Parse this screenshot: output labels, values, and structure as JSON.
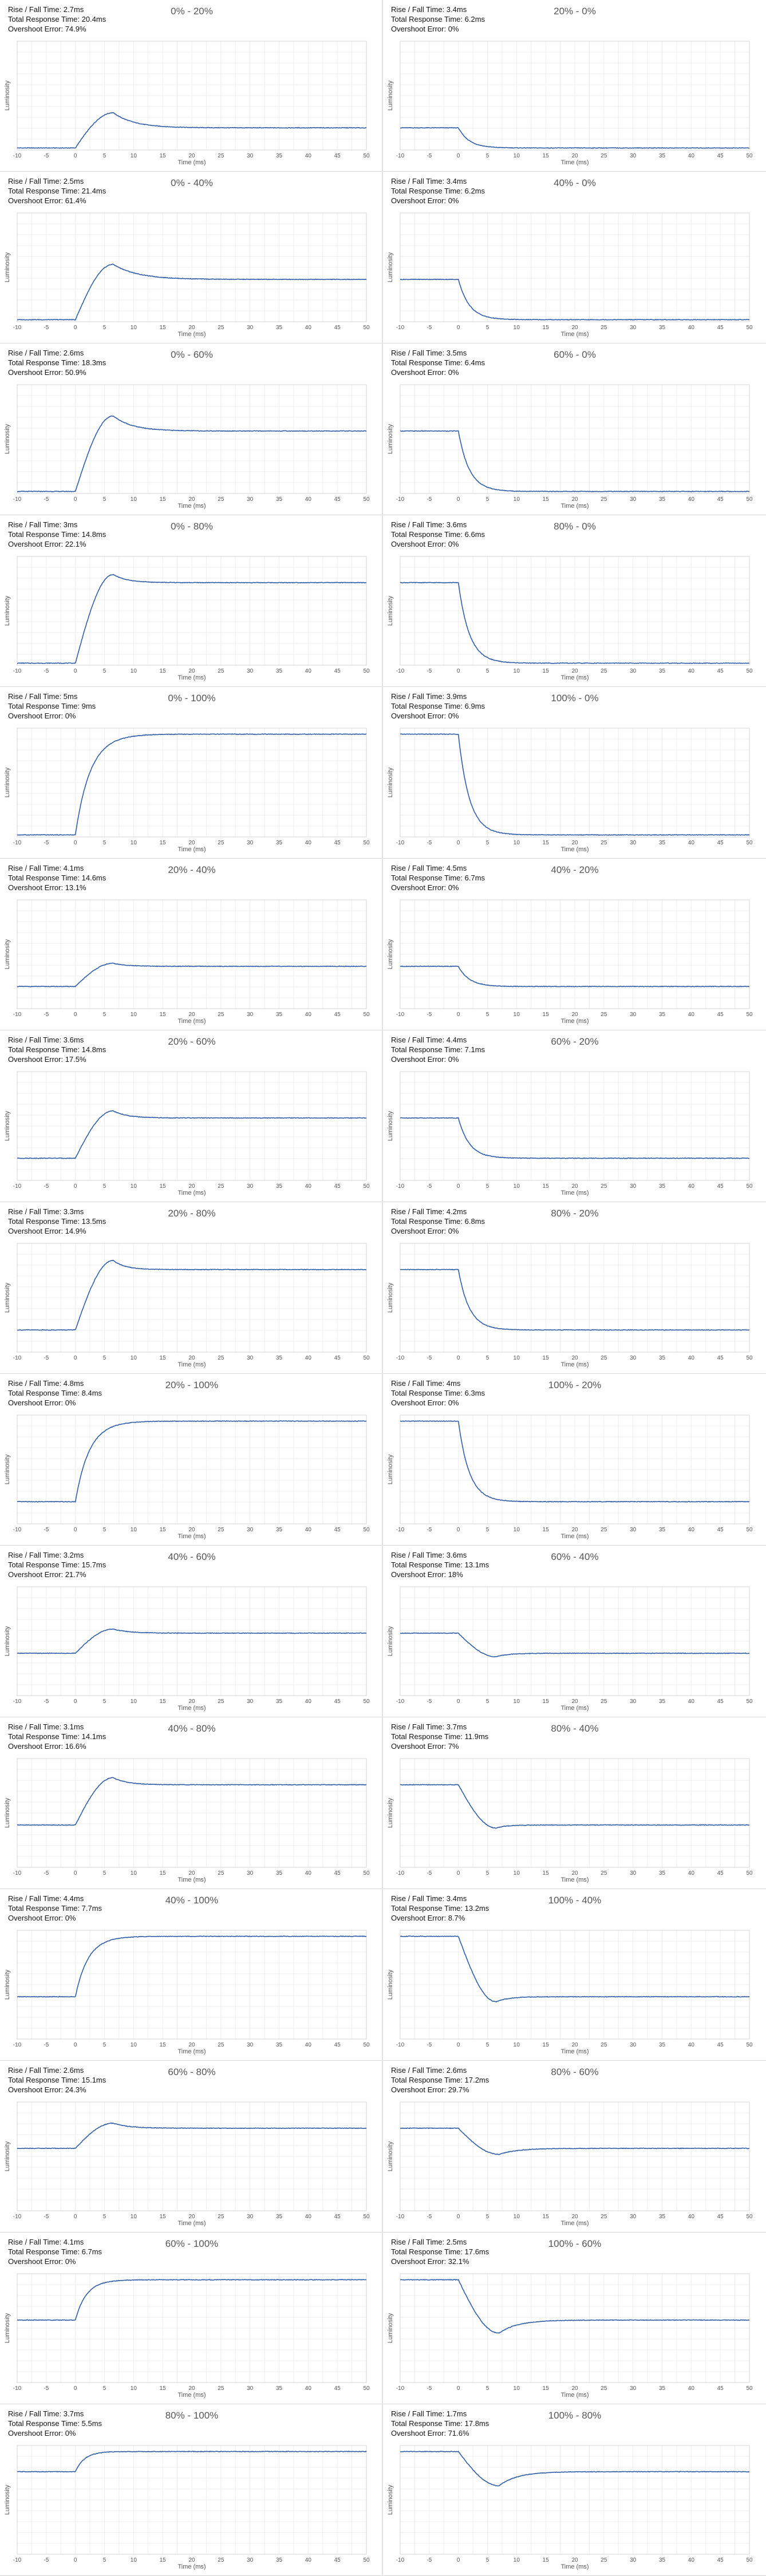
{
  "stat_labels": {
    "rise_fall": "Rise / Fall Time:",
    "total": "Total Response Time:",
    "overshoot": "Overshoot Error:"
  },
  "chart_data": [
    {
      "type": "line",
      "title": "0% - 20%",
      "xlabel": "Time (ms)",
      "ylabel": "Luminosity",
      "xlim": [
        -10,
        50
      ],
      "x_ticks": [
        -10,
        -5,
        0,
        5,
        10,
        15,
        20,
        25,
        30,
        35,
        40,
        45,
        50
      ],
      "rise_fall": "2.7ms",
      "total": "20.4ms",
      "overshoot": "74.9%",
      "start": 0,
      "target": 0.2,
      "peak": 0.35,
      "peak_time": 6.5,
      "transition_start": 0,
      "settle_time": 18
    },
    {
      "type": "line",
      "title": "20% - 0%",
      "xlabel": "Time (ms)",
      "ylabel": "Luminosity",
      "xlim": [
        -10,
        50
      ],
      "x_ticks": [
        -10,
        -5,
        0,
        5,
        10,
        15,
        20,
        25,
        30,
        35,
        40,
        45,
        50
      ],
      "rise_fall": "3.4ms",
      "total": "6.2ms",
      "overshoot": "0%",
      "start": 0.2,
      "target": 0,
      "peak": 0,
      "peak_time": 6,
      "transition_start": 0,
      "settle_time": 7
    },
    {
      "type": "line",
      "title": "0% - 40%",
      "xlabel": "Time (ms)",
      "ylabel": "Luminosity",
      "xlim": [
        -10,
        50
      ],
      "x_ticks": [
        -10,
        -5,
        0,
        5,
        10,
        15,
        20,
        25,
        30,
        35,
        40,
        45,
        50
      ],
      "rise_fall": "2.5ms",
      "total": "21.4ms",
      "overshoot": "61.4%",
      "start": 0,
      "target": 0.4,
      "peak": 0.55,
      "peak_time": 6.5,
      "transition_start": 0,
      "settle_time": 20
    },
    {
      "type": "line",
      "title": "40% - 0%",
      "xlabel": "Time (ms)",
      "ylabel": "Luminosity",
      "xlim": [
        -10,
        50
      ],
      "x_ticks": [
        -10,
        -5,
        0,
        5,
        10,
        15,
        20,
        25,
        30,
        35,
        40,
        45,
        50
      ],
      "rise_fall": "3.4ms",
      "total": "6.2ms",
      "overshoot": "0%",
      "start": 0.4,
      "target": 0,
      "peak": 0,
      "peak_time": 6,
      "transition_start": 0,
      "settle_time": 7
    },
    {
      "type": "line",
      "title": "0% - 60%",
      "xlabel": "Time (ms)",
      "ylabel": "Luminosity",
      "xlim": [
        -10,
        50
      ],
      "x_ticks": [
        -10,
        -5,
        0,
        5,
        10,
        15,
        20,
        25,
        30,
        35,
        40,
        45,
        50
      ],
      "rise_fall": "2.6ms",
      "total": "18.3ms",
      "overshoot": "50.9%",
      "start": 0,
      "target": 0.6,
      "peak": 0.75,
      "peak_time": 6.5,
      "transition_start": 0,
      "settle_time": 17
    },
    {
      "type": "line",
      "title": "60% - 0%",
      "xlabel": "Time (ms)",
      "ylabel": "Luminosity",
      "xlim": [
        -10,
        50
      ],
      "x_ticks": [
        -10,
        -5,
        0,
        5,
        10,
        15,
        20,
        25,
        30,
        35,
        40,
        45,
        50
      ],
      "rise_fall": "3.5ms",
      "total": "6.4ms",
      "overshoot": "0%",
      "start": 0.6,
      "target": 0,
      "peak": 0,
      "peak_time": 6,
      "transition_start": 0,
      "settle_time": 7
    },
    {
      "type": "line",
      "title": "0% - 80%",
      "xlabel": "Time (ms)",
      "ylabel": "Luminosity",
      "xlim": [
        -10,
        50
      ],
      "x_ticks": [
        -10,
        -5,
        0,
        5,
        10,
        15,
        20,
        25,
        30,
        35,
        40,
        45,
        50
      ],
      "rise_fall": "3ms",
      "total": "14.8ms",
      "overshoot": "22.1%",
      "start": 0,
      "target": 0.8,
      "peak": 0.88,
      "peak_time": 6.5,
      "transition_start": 0,
      "settle_time": 14
    },
    {
      "type": "line",
      "title": "80% - 0%",
      "xlabel": "Time (ms)",
      "ylabel": "Luminosity",
      "xlim": [
        -10,
        50
      ],
      "x_ticks": [
        -10,
        -5,
        0,
        5,
        10,
        15,
        20,
        25,
        30,
        35,
        40,
        45,
        50
      ],
      "rise_fall": "3.6ms",
      "total": "6.6ms",
      "overshoot": "0%",
      "start": 0.8,
      "target": 0,
      "peak": 0,
      "peak_time": 6,
      "transition_start": 0,
      "settle_time": 7
    },
    {
      "type": "line",
      "title": "0% - 100%",
      "xlabel": "Time (ms)",
      "ylabel": "Luminosity",
      "xlim": [
        -10,
        50
      ],
      "x_ticks": [
        -10,
        -5,
        0,
        5,
        10,
        15,
        20,
        25,
        30,
        35,
        40,
        45,
        50
      ],
      "rise_fall": "5ms",
      "total": "9ms",
      "overshoot": "0%",
      "start": 0,
      "target": 1,
      "peak": 1,
      "peak_time": 9,
      "transition_start": 0,
      "settle_time": 9
    },
    {
      "type": "line",
      "title": "100% - 0%",
      "xlabel": "Time (ms)",
      "ylabel": "Luminosity",
      "xlim": [
        -10,
        50
      ],
      "x_ticks": [
        -10,
        -5,
        0,
        5,
        10,
        15,
        20,
        25,
        30,
        35,
        40,
        45,
        50
      ],
      "rise_fall": "3.9ms",
      "total": "6.9ms",
      "overshoot": "0%",
      "start": 1,
      "target": 0,
      "peak": 0,
      "peak_time": 6,
      "transition_start": 0,
      "settle_time": 7
    },
    {
      "type": "line",
      "title": "20% - 40%",
      "xlabel": "Time (ms)",
      "ylabel": "Luminosity",
      "xlim": [
        -10,
        50
      ],
      "x_ticks": [
        -10,
        -5,
        0,
        5,
        10,
        15,
        20,
        25,
        30,
        35,
        40,
        45,
        50
      ],
      "rise_fall": "4.1ms",
      "total": "14.6ms",
      "overshoot": "13.1%",
      "start": 0.2,
      "target": 0.4,
      "peak": 0.43,
      "peak_time": 6.5,
      "transition_start": 0,
      "settle_time": 14
    },
    {
      "type": "line",
      "title": "40% - 20%",
      "xlabel": "Time (ms)",
      "ylabel": "Luminosity",
      "xlim": [
        -10,
        50
      ],
      "x_ticks": [
        -10,
        -5,
        0,
        5,
        10,
        15,
        20,
        25,
        30,
        35,
        40,
        45,
        50
      ],
      "rise_fall": "4.5ms",
      "total": "6.7ms",
      "overshoot": "0%",
      "start": 0.4,
      "target": 0.2,
      "peak": 0.2,
      "peak_time": 6,
      "transition_start": 0,
      "settle_time": 7
    },
    {
      "type": "line",
      "title": "20% - 60%",
      "xlabel": "Time (ms)",
      "ylabel": "Luminosity",
      "xlim": [
        -10,
        50
      ],
      "x_ticks": [
        -10,
        -5,
        0,
        5,
        10,
        15,
        20,
        25,
        30,
        35,
        40,
        45,
        50
      ],
      "rise_fall": "3.6ms",
      "total": "14.8ms",
      "overshoot": "17.5%",
      "start": 0.2,
      "target": 0.6,
      "peak": 0.67,
      "peak_time": 6.5,
      "transition_start": 0,
      "settle_time": 14
    },
    {
      "type": "line",
      "title": "60% - 20%",
      "xlabel": "Time (ms)",
      "ylabel": "Luminosity",
      "xlim": [
        -10,
        50
      ],
      "x_ticks": [
        -10,
        -5,
        0,
        5,
        10,
        15,
        20,
        25,
        30,
        35,
        40,
        45,
        50
      ],
      "rise_fall": "4.4ms",
      "total": "7.1ms",
      "overshoot": "0%",
      "start": 0.6,
      "target": 0.2,
      "peak": 0.2,
      "peak_time": 6,
      "transition_start": 0,
      "settle_time": 7
    },
    {
      "type": "line",
      "title": "20% - 80%",
      "xlabel": "Time (ms)",
      "ylabel": "Luminosity",
      "xlim": [
        -10,
        50
      ],
      "x_ticks": [
        -10,
        -5,
        0,
        5,
        10,
        15,
        20,
        25,
        30,
        35,
        40,
        45,
        50
      ],
      "rise_fall": "3.3ms",
      "total": "13.5ms",
      "overshoot": "14.9%",
      "start": 0.2,
      "target": 0.8,
      "peak": 0.89,
      "peak_time": 6.5,
      "transition_start": 0,
      "settle_time": 13
    },
    {
      "type": "line",
      "title": "80% - 20%",
      "xlabel": "Time (ms)",
      "ylabel": "Luminosity",
      "xlim": [
        -10,
        50
      ],
      "x_ticks": [
        -10,
        -5,
        0,
        5,
        10,
        15,
        20,
        25,
        30,
        35,
        40,
        45,
        50
      ],
      "rise_fall": "4.2ms",
      "total": "6.8ms",
      "overshoot": "0%",
      "start": 0.8,
      "target": 0.2,
      "peak": 0.2,
      "peak_time": 6,
      "transition_start": 0,
      "settle_time": 7
    },
    {
      "type": "line",
      "title": "20% - 100%",
      "xlabel": "Time (ms)",
      "ylabel": "Luminosity",
      "xlim": [
        -10,
        50
      ],
      "x_ticks": [
        -10,
        -5,
        0,
        5,
        10,
        15,
        20,
        25,
        30,
        35,
        40,
        45,
        50
      ],
      "rise_fall": "4.8ms",
      "total": "8.4ms",
      "overshoot": "0%",
      "start": 0.2,
      "target": 1,
      "peak": 1,
      "peak_time": 8.4,
      "transition_start": 0,
      "settle_time": 8.4
    },
    {
      "type": "line",
      "title": "100% - 20%",
      "xlabel": "Time (ms)",
      "ylabel": "Luminosity",
      "xlim": [
        -10,
        50
      ],
      "x_ticks": [
        -10,
        -5,
        0,
        5,
        10,
        15,
        20,
        25,
        30,
        35,
        40,
        45,
        50
      ],
      "rise_fall": "4ms",
      "total": "6.3ms",
      "overshoot": "0%",
      "start": 1,
      "target": 0.2,
      "peak": 0.2,
      "peak_time": 6,
      "transition_start": 0,
      "settle_time": 7
    },
    {
      "type": "line",
      "title": "40% - 60%",
      "xlabel": "Time (ms)",
      "ylabel": "Luminosity",
      "xlim": [
        -10,
        50
      ],
      "x_ticks": [
        -10,
        -5,
        0,
        5,
        10,
        15,
        20,
        25,
        30,
        35,
        40,
        45,
        50
      ],
      "rise_fall": "3.2ms",
      "total": "15.7ms",
      "overshoot": "21.7%",
      "start": 0.4,
      "target": 0.6,
      "peak": 0.64,
      "peak_time": 6.5,
      "transition_start": 0,
      "settle_time": 15
    },
    {
      "type": "line",
      "title": "60% - 40%",
      "xlabel": "Time (ms)",
      "ylabel": "Luminosity",
      "xlim": [
        -10,
        50
      ],
      "x_ticks": [
        -10,
        -5,
        0,
        5,
        10,
        15,
        20,
        25,
        30,
        35,
        40,
        45,
        50
      ],
      "rise_fall": "3.6ms",
      "total": "13.1ms",
      "overshoot": "18%",
      "start": 0.6,
      "target": 0.4,
      "peak": 0.365,
      "peak_time": 6.5,
      "transition_start": 0,
      "settle_time": 13
    },
    {
      "type": "line",
      "title": "40% - 80%",
      "xlabel": "Time (ms)",
      "ylabel": "Luminosity",
      "xlim": [
        -10,
        50
      ],
      "x_ticks": [
        -10,
        -5,
        0,
        5,
        10,
        15,
        20,
        25,
        30,
        35,
        40,
        45,
        50
      ],
      "rise_fall": "3.1ms",
      "total": "14.1ms",
      "overshoot": "16.6%",
      "start": 0.4,
      "target": 0.8,
      "peak": 0.87,
      "peak_time": 6.5,
      "transition_start": 0,
      "settle_time": 14
    },
    {
      "type": "line",
      "title": "80% - 40%",
      "xlabel": "Time (ms)",
      "ylabel": "Luminosity",
      "xlim": [
        -10,
        50
      ],
      "x_ticks": [
        -10,
        -5,
        0,
        5,
        10,
        15,
        20,
        25,
        30,
        35,
        40,
        45,
        50
      ],
      "rise_fall": "3.7ms",
      "total": "11.9ms",
      "overshoot": "7%",
      "start": 0.8,
      "target": 0.4,
      "peak": 0.37,
      "peak_time": 6.5,
      "transition_start": 0,
      "settle_time": 12
    },
    {
      "type": "line",
      "title": "40% - 100%",
      "xlabel": "Time (ms)",
      "ylabel": "Luminosity",
      "xlim": [
        -10,
        50
      ],
      "x_ticks": [
        -10,
        -5,
        0,
        5,
        10,
        15,
        20,
        25,
        30,
        35,
        40,
        45,
        50
      ],
      "rise_fall": "4.4ms",
      "total": "7.7ms",
      "overshoot": "0%",
      "start": 0.4,
      "target": 1,
      "peak": 1,
      "peak_time": 7.7,
      "transition_start": 0,
      "settle_time": 7.7
    },
    {
      "type": "line",
      "title": "100% - 40%",
      "xlabel": "Time (ms)",
      "ylabel": "Luminosity",
      "xlim": [
        -10,
        50
      ],
      "x_ticks": [
        -10,
        -5,
        0,
        5,
        10,
        15,
        20,
        25,
        30,
        35,
        40,
        45,
        50
      ],
      "rise_fall": "3.4ms",
      "total": "13.2ms",
      "overshoot": "8.7%",
      "start": 1,
      "target": 0.4,
      "peak": 0.35,
      "peak_time": 6.5,
      "transition_start": 0,
      "settle_time": 13
    },
    {
      "type": "line",
      "title": "60% - 80%",
      "xlabel": "Time (ms)",
      "ylabel": "Luminosity",
      "xlim": [
        -10,
        50
      ],
      "x_ticks": [
        -10,
        -5,
        0,
        5,
        10,
        15,
        20,
        25,
        30,
        35,
        40,
        45,
        50
      ],
      "rise_fall": "2.6ms",
      "total": "15.1ms",
      "overshoot": "24.3%",
      "start": 0.6,
      "target": 0.8,
      "peak": 0.85,
      "peak_time": 6.5,
      "transition_start": 0,
      "settle_time": 15
    },
    {
      "type": "line",
      "title": "80% - 60%",
      "xlabel": "Time (ms)",
      "ylabel": "Luminosity",
      "xlim": [
        -10,
        50
      ],
      "x_ticks": [
        -10,
        -5,
        0,
        5,
        10,
        15,
        20,
        25,
        30,
        35,
        40,
        45,
        50
      ],
      "rise_fall": "2.6ms",
      "total": "17.2ms",
      "overshoot": "29.7%",
      "start": 0.8,
      "target": 0.6,
      "peak": 0.54,
      "peak_time": 7,
      "transition_start": 0,
      "settle_time": 17
    },
    {
      "type": "line",
      "title": "60% - 100%",
      "xlabel": "Time (ms)",
      "ylabel": "Luminosity",
      "xlim": [
        -10,
        50
      ],
      "x_ticks": [
        -10,
        -5,
        0,
        5,
        10,
        15,
        20,
        25,
        30,
        35,
        40,
        45,
        50
      ],
      "rise_fall": "4.1ms",
      "total": "6.7ms",
      "overshoot": "0%",
      "start": 0.6,
      "target": 1,
      "peak": 1,
      "peak_time": 6.7,
      "transition_start": 0,
      "settle_time": 6.7
    },
    {
      "type": "line",
      "title": "100% - 60%",
      "xlabel": "Time (ms)",
      "ylabel": "Luminosity",
      "xlim": [
        -10,
        50
      ],
      "x_ticks": [
        -10,
        -5,
        0,
        5,
        10,
        15,
        20,
        25,
        30,
        35,
        40,
        45,
        50
      ],
      "rise_fall": "2.5ms",
      "total": "17.6ms",
      "overshoot": "32.1%",
      "start": 1,
      "target": 0.6,
      "peak": 0.47,
      "peak_time": 7,
      "transition_start": 0,
      "settle_time": 17
    },
    {
      "type": "line",
      "title": "80% - 100%",
      "xlabel": "Time (ms)",
      "ylabel": "Luminosity",
      "xlim": [
        -10,
        50
      ],
      "x_ticks": [
        -10,
        -5,
        0,
        5,
        10,
        15,
        20,
        25,
        30,
        35,
        40,
        45,
        50
      ],
      "rise_fall": "3.7ms",
      "total": "5.5ms",
      "overshoot": "0%",
      "start": 0.8,
      "target": 1,
      "peak": 1,
      "peak_time": 5.5,
      "transition_start": 0,
      "settle_time": 5.5
    },
    {
      "type": "line",
      "title": "100% - 80%",
      "xlabel": "Time (ms)",
      "ylabel": "Luminosity",
      "xlim": [
        -10,
        50
      ],
      "x_ticks": [
        -10,
        -5,
        0,
        5,
        10,
        15,
        20,
        25,
        30,
        35,
        40,
        45,
        50
      ],
      "rise_fall": "1.7ms",
      "total": "17.8ms",
      "overshoot": "71.6%",
      "start": 1,
      "target": 0.8,
      "peak": 0.66,
      "peak_time": 7,
      "transition_start": 0,
      "settle_time": 17
    }
  ]
}
